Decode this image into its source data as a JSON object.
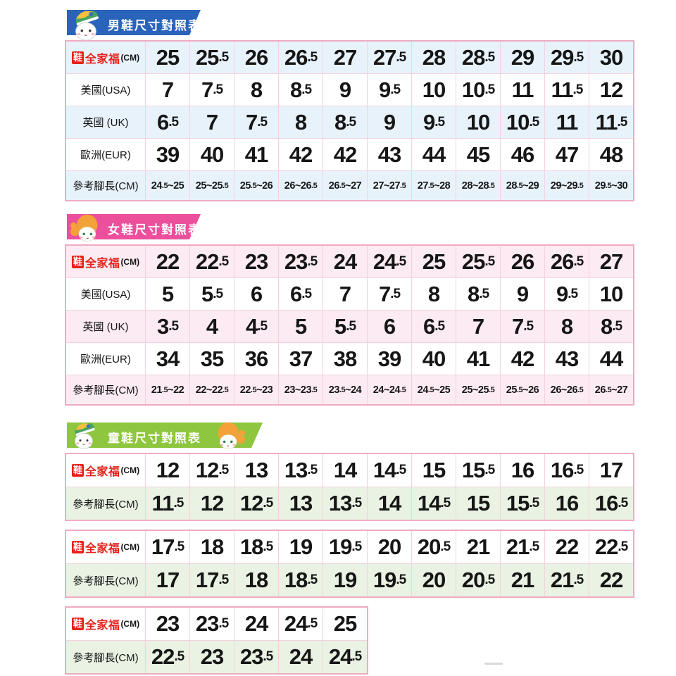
{
  "colors": {
    "banner_men": "#2a64ba",
    "banner_women": "#ec4f9c",
    "banner_children": "#8ec63f",
    "table_border": "#efabc2",
    "grid_line": "#f3d2de",
    "stripe_blue": "#e8f2fb",
    "stripe_pink": "#fcebf2",
    "stripe_green": "#e9f2e3",
    "brand_red": "#e62119",
    "number_black": "#161616"
  },
  "labels": {
    "brand_badge": "鞋",
    "brand_name": "全家福",
    "brand_unit": "(CM)",
    "usa": "美國(USA)",
    "uk": "英國 (UK)",
    "eur": "歐洲(EUR)",
    "foot": "參考腳長(CM)"
  },
  "icons": {
    "men_banner": "boy-mascot-icon",
    "women_banner": "girl-mascot-icon",
    "children_banner": [
      "boy-mascot-icon",
      "girl-mascot-icon"
    ]
  },
  "sections": {
    "men": {
      "title": "男鞋尺寸對照表",
      "theme": "blue",
      "stripe_first": true,
      "tables": [
        {
          "rows": [
            {
              "type": "brand",
              "values": [
                "25",
                "25.5",
                "26",
                "26.5",
                "27",
                "27.5",
                "28",
                "28.5",
                "29",
                "29.5",
                "30"
              ]
            },
            {
              "type": "usa",
              "values": [
                "7",
                "7.5",
                "8",
                "8.5",
                "9",
                "9.5",
                "10",
                "10.5",
                "11",
                "11.5",
                "12"
              ]
            },
            {
              "type": "uk",
              "values": [
                "6.5",
                "7",
                "7.5",
                "8",
                "8.5",
                "9",
                "9.5",
                "10",
                "10.5",
                "11",
                "11.5"
              ]
            },
            {
              "type": "eur",
              "values": [
                "39",
                "40",
                "41",
                "42",
                "42",
                "43",
                "44",
                "45",
                "46",
                "47",
                "48"
              ]
            },
            {
              "type": "foot",
              "values": [
                "24.5~25",
                "25~25.5",
                "25.5~26",
                "26~26.5",
                "26.5~27",
                "27~27.5",
                "27.5~28",
                "28~28.5",
                "28.5~29",
                "29~29.5",
                "29.5~30"
              ]
            }
          ]
        }
      ]
    },
    "women": {
      "title": "女鞋尺寸對照表",
      "theme": "pink",
      "stripe_first": true,
      "tables": [
        {
          "rows": [
            {
              "type": "brand",
              "values": [
                "22",
                "22.5",
                "23",
                "23.5",
                "24",
                "24.5",
                "25",
                "25.5",
                "26",
                "26.5",
                "27"
              ]
            },
            {
              "type": "usa",
              "values": [
                "5",
                "5.5",
                "6",
                "6.5",
                "7",
                "7.5",
                "8",
                "8.5",
                "9",
                "9.5",
                "10"
              ]
            },
            {
              "type": "uk",
              "values": [
                "3.5",
                "4",
                "4.5",
                "5",
                "5.5",
                "6",
                "6.5",
                "7",
                "7.5",
                "8",
                "8.5"
              ]
            },
            {
              "type": "eur",
              "values": [
                "34",
                "35",
                "36",
                "37",
                "38",
                "39",
                "40",
                "41",
                "42",
                "43",
                "44"
              ]
            },
            {
              "type": "foot",
              "values": [
                "21.5~22",
                "22~22.5",
                "22.5~23",
                "23~23.5",
                "23.5~24",
                "24~24.5",
                "24.5~25",
                "25~25.5",
                "25.5~26",
                "26~26.5",
                "26.5~27"
              ]
            }
          ]
        }
      ]
    },
    "children": {
      "title": "童鞋尺寸對照表",
      "theme": "green",
      "stripe_first": false,
      "tables": [
        {
          "rows": [
            {
              "type": "brand",
              "values": [
                "12",
                "12.5",
                "13",
                "13.5",
                "14",
                "14.5",
                "15",
                "15.5",
                "16",
                "16.5",
                "17"
              ]
            },
            {
              "type": "foot",
              "values": [
                "11.5",
                "12",
                "12.5",
                "13",
                "13.5",
                "14",
                "14.5",
                "15",
                "15.5",
                "16",
                "16.5"
              ]
            }
          ]
        },
        {
          "rows": [
            {
              "type": "brand",
              "values": [
                "17.5",
                "18",
                "18.5",
                "19",
                "19.5",
                "20",
                "20.5",
                "21",
                "21.5",
                "22",
                "22.5"
              ]
            },
            {
              "type": "foot",
              "values": [
                "17",
                "17.5",
                "18",
                "18.5",
                "19",
                "19.5",
                "20",
                "20.5",
                "21",
                "21.5",
                "22"
              ]
            }
          ]
        },
        {
          "rows": [
            {
              "type": "brand",
              "values": [
                "23",
                "23.5",
                "24",
                "24.5",
                "25"
              ]
            },
            {
              "type": "foot",
              "values": [
                "22.5",
                "23",
                "23.5",
                "24",
                "24.5"
              ]
            }
          ]
        }
      ]
    }
  }
}
